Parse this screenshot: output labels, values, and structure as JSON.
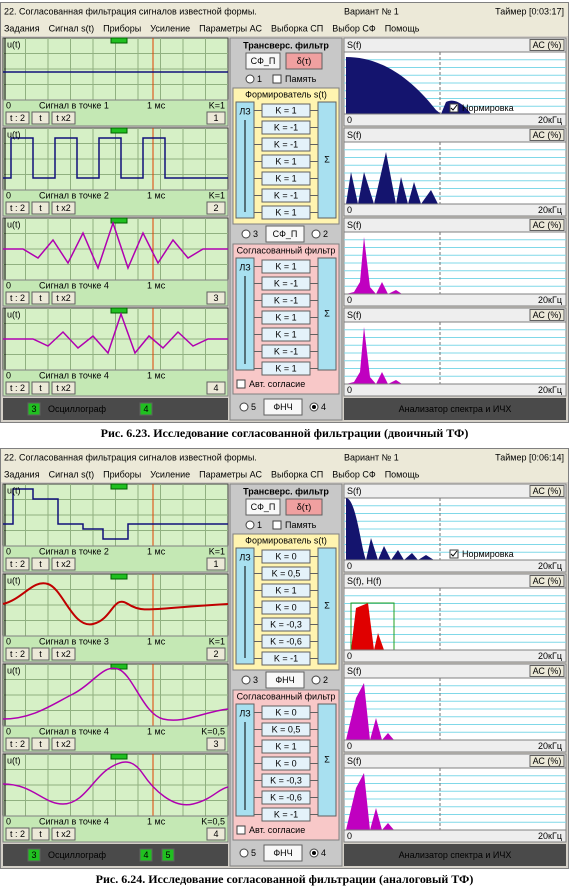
{
  "figures": [
    {
      "window": {
        "title": "22. Согласованная фильтрация сигналов известной формы.",
        "variant": "Вариант № 1",
        "timer": "Таймер [0:03:17]"
      },
      "menu": [
        "Задания",
        "Сигнал s(t)",
        "Приборы",
        "Усиление",
        "Параметры АС",
        "Выборка СП",
        "Выбор СФ",
        "Помощь"
      ],
      "menu_disabled": [
        1
      ],
      "oscilloscope": {
        "panels": [
          {
            "axis": "u(t)",
            "origin": "0",
            "label": "Сигнал в точке 1",
            "time": "1 мс",
            "gain": "K=1",
            "buttons": [
              "t : 2",
              "t",
              "t x2"
            ],
            "channel": "1"
          },
          {
            "axis": "u(t)",
            "origin": "0",
            "label": "Сигнал в точке 2",
            "time": "1 мс",
            "gain": "K=1",
            "buttons": [
              "t : 2",
              "t",
              "t x2"
            ],
            "channel": "2"
          },
          {
            "axis": "u(t)",
            "origin": "0",
            "label": "Сигнал в точке 4",
            "time": "1 мс",
            "buttons": [
              "t : 2",
              "t",
              "t x2"
            ],
            "channel": "3"
          },
          {
            "axis": "u(t)",
            "origin": "0",
            "label": "Сигнал в точке 4",
            "time": "1 мс",
            "buttons": [
              "t : 2",
              "t",
              "t x2"
            ],
            "channel": "4"
          }
        ],
        "footer": {
          "left": "3",
          "title": "Осциллограф",
          "right": [
            "4"
          ]
        }
      },
      "filter": {
        "title": "Трансверс. фильтр",
        "buttons": [
          "СФ_П",
          "δ(τ)"
        ],
        "radio": "1",
        "memory": "Память",
        "shaper": {
          "title": "Формирователь s(t)",
          "delay": "ЛЗ",
          "gains": [
            "K = 1",
            "K = -1",
            "K = -1",
            "K = 1",
            "K = 1",
            "K = -1",
            "K = 1"
          ],
          "sum": "Σ"
        },
        "middle": {
          "left": "3",
          "button": "СФ_П",
          "right": "2"
        },
        "matched": {
          "title": "Согласованный фильтр",
          "delay": "ЛЗ",
          "gains": [
            "K = 1",
            "K = -1",
            "K = -1",
            "K = 1",
            "K = 1",
            "K = -1",
            "K = 1"
          ],
          "sum": "Σ",
          "auto": "Авт. согласие"
        },
        "bottom": {
          "left": "5",
          "button": "ФНЧ",
          "right": "4"
        }
      },
      "spectrum": {
        "panels": [
          {
            "axis": "S(f)",
            "button": "АС (%)",
            "origin": "0",
            "freq": "20кГц",
            "normalize": "Нормировка"
          },
          {
            "axis": "S(f)",
            "button": "АС (%)",
            "origin": "0",
            "freq": "20кГц"
          },
          {
            "axis": "S(f)",
            "button": "АС (%)",
            "origin": "0",
            "freq": "20кГц"
          },
          {
            "axis": "S(f)",
            "button": "АС (%)",
            "origin": "0",
            "freq": "20кГц"
          }
        ],
        "footer": "Анализатор спектра и ИЧХ"
      },
      "caption": "Рис. 6.23. Исследование согласованной фильтрации (двоичный ТФ)"
    },
    {
      "window": {
        "title": "22. Согласованная фильтрация сигналов известной формы.",
        "variant": "Вариант № 1",
        "timer": "Таймер [0:06:14]"
      },
      "menu": [
        "Задания",
        "Сигнал s(t)",
        "Приборы",
        "Усиление",
        "Параметры АС",
        "Выборка СП",
        "Выбор СФ",
        "Помощь"
      ],
      "menu_disabled": [
        1,
        5
      ],
      "oscilloscope": {
        "panels": [
          {
            "axis": "u(t)",
            "origin": "0",
            "label": "Сигнал в точке 2",
            "time": "1 мс",
            "gain": "K=1",
            "buttons": [
              "t : 2",
              "t",
              "t x2"
            ],
            "channel": "1"
          },
          {
            "axis": "u(t)",
            "origin": "0",
            "label": "Сигнал в точке 3",
            "time": "1 мс",
            "gain": "K=1",
            "buttons": [
              "t : 2",
              "t",
              "t x2"
            ],
            "channel": "2"
          },
          {
            "axis": "u(t)",
            "origin": "0",
            "label": "Сигнал в точке 4",
            "time": "1 мс",
            "gain": "K=0,5",
            "buttons": [
              "t : 2",
              "t",
              "t x2"
            ],
            "channel": "3"
          },
          {
            "axis": "u(t)",
            "origin": "0",
            "label": "Сигнал в точке 4",
            "time": "1 мс",
            "gain": "K=0,5",
            "buttons": [
              "t : 2",
              "t",
              "t x2"
            ],
            "channel": "4"
          }
        ],
        "footer": {
          "left": "3",
          "title": "Осциллограф",
          "right": [
            "4",
            "5"
          ]
        }
      },
      "filter": {
        "title": "Трансверс. фильтр",
        "buttons": [
          "СФ_П",
          "δ(τ)"
        ],
        "radio": "1",
        "memory": "Память",
        "shaper": {
          "title": "Формирователь s(t)",
          "delay": "ЛЗ",
          "gains": [
            "K = 0",
            "K = 0,5",
            "K = 1",
            "K = 0",
            "K = -0,3",
            "K = -0,6",
            "K = -1"
          ],
          "sum": "Σ"
        },
        "middle": {
          "left": "3",
          "button": "ФНЧ",
          "right": "2"
        },
        "matched": {
          "title": "Согласованный фильтр",
          "delay": "ЛЗ",
          "gains": [
            "K = 0",
            "K = 0,5",
            "K = 1",
            "K = 0",
            "K = -0,3",
            "K = -0,6",
            "K = -1"
          ],
          "sum": "Σ",
          "auto": "Авт. согласие"
        },
        "bottom": {
          "left": "5",
          "button": "ФНЧ",
          "right": "4"
        }
      },
      "spectrum": {
        "panels": [
          {
            "axis": "S(f)",
            "button": "АС (%)",
            "origin": "0",
            "freq": "20кГц",
            "normalize": "Нормировка"
          },
          {
            "axis": "S(f), H(f)",
            "button": "АС (%)",
            "origin": "0",
            "freq": "20кГц"
          },
          {
            "axis": "S(f)",
            "button": "АС (%)",
            "origin": "0",
            "freq": "20кГц"
          },
          {
            "axis": "S(f)",
            "button": "АС (%)",
            "origin": "0",
            "freq": "20кГц"
          }
        ],
        "footer": "Анализатор спектра и ИЧХ"
      },
      "caption": "Рис. 6.24. Исследование согласованной фильтрации (аналоговый ТФ)"
    }
  ]
}
